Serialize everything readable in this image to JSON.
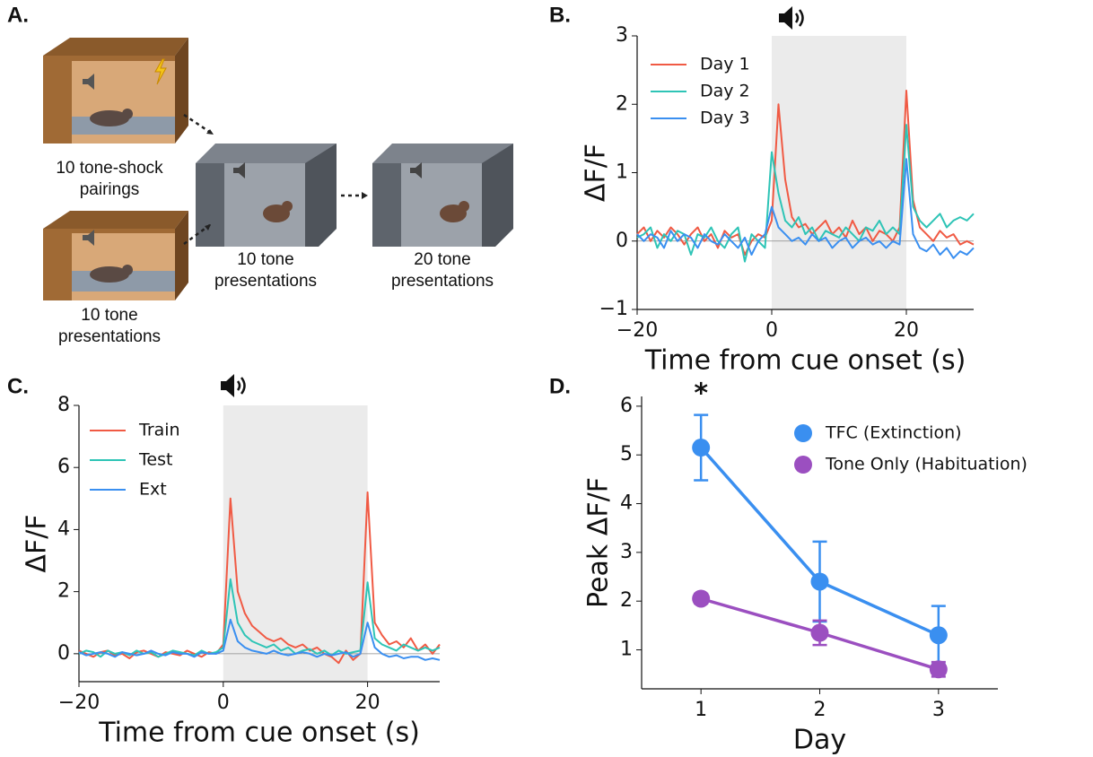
{
  "diagram": {
    "label": "A.",
    "captions": [
      [
        "10 tone-shock",
        "pairings"
      ],
      [
        "10 tone",
        "presentations"
      ],
      [
        "10 tone",
        "presentations"
      ],
      [
        "20 tone",
        "presentations"
      ]
    ]
  },
  "chart_data": [
    {
      "type": "line",
      "label": "B.",
      "xlabel": "Time from cue onset (s)",
      "ylabel": "ΔF/F",
      "xlim": [
        -20,
        30
      ],
      "ylim": [
        -1,
        3
      ],
      "xticks": [
        {
          "value": -20,
          "label": "−20"
        },
        0,
        20
      ],
      "yticks": [
        {
          "value": -1,
          "label": "−1"
        },
        0,
        1,
        2,
        3
      ],
      "highlight": [
        0,
        20
      ],
      "legend": "upper left",
      "x": [
        -20,
        -19,
        -18,
        -17,
        -16,
        -15,
        -14,
        -13,
        -12,
        -11,
        -10,
        -9,
        -8,
        -7,
        -6,
        -5,
        -4,
        -3,
        -2,
        -1,
        0,
        1,
        2,
        3,
        4,
        5,
        6,
        7,
        8,
        9,
        10,
        11,
        12,
        13,
        14,
        15,
        16,
        17,
        18,
        19,
        20,
        21,
        22,
        23,
        24,
        25,
        26,
        27,
        28,
        29,
        30
      ],
      "series": [
        {
          "name": "Day 1",
          "color": "#f05a44",
          "values": [
            0.1,
            0.2,
            0.0,
            0.15,
            0.05,
            0.2,
            0.1,
            -0.05,
            0.1,
            0.2,
            0.0,
            0.1,
            -0.1,
            0.15,
            0.05,
            0.1,
            -0.2,
            0.0,
            0.1,
            0.05,
            0.3,
            2.0,
            0.9,
            0.35,
            0.2,
            0.25,
            0.1,
            0.2,
            0.3,
            0.1,
            0.2,
            0.05,
            0.3,
            0.1,
            0.2,
            0.0,
            0.15,
            0.1,
            0.0,
            0.2,
            2.2,
            0.6,
            0.2,
            0.1,
            0.0,
            0.15,
            0.05,
            0.1,
            -0.05,
            0.0,
            -0.05
          ]
        },
        {
          "name": "Day 2",
          "color": "#2ec4b6",
          "values": [
            0.05,
            0.1,
            0.2,
            -0.1,
            0.1,
            0.0,
            0.15,
            0.1,
            -0.2,
            0.1,
            0.05,
            0.2,
            0.0,
            -0.1,
            0.1,
            0.2,
            -0.3,
            0.1,
            0.0,
            -0.1,
            1.3,
            0.7,
            0.3,
            0.2,
            0.35,
            0.1,
            0.2,
            0.0,
            0.15,
            0.1,
            0.05,
            0.2,
            0.1,
            0.0,
            0.2,
            0.15,
            0.3,
            0.1,
            0.2,
            0.1,
            1.7,
            0.5,
            0.3,
            0.2,
            0.3,
            0.4,
            0.2,
            0.3,
            0.35,
            0.3,
            0.4
          ]
        },
        {
          "name": "Day 3",
          "color": "#3a8ff0",
          "values": [
            0.1,
            0.0,
            0.1,
            0.05,
            -0.1,
            0.15,
            0.0,
            0.1,
            0.05,
            -0.1,
            0.1,
            0.0,
            -0.05,
            0.1,
            0.0,
            -0.1,
            0.05,
            -0.2,
            0.0,
            0.1,
            0.5,
            0.2,
            0.1,
            0.0,
            0.05,
            -0.05,
            0.1,
            0.0,
            0.05,
            -0.1,
            0.0,
            0.05,
            -0.1,
            0.0,
            0.05,
            -0.05,
            0.0,
            -0.1,
            0.0,
            -0.05,
            1.2,
            0.1,
            -0.1,
            -0.15,
            -0.05,
            -0.2,
            -0.1,
            -0.25,
            -0.15,
            -0.2,
            -0.1
          ]
        }
      ]
    },
    {
      "type": "line",
      "label": "C.",
      "xlabel": "Time from cue onset (s)",
      "ylabel": "ΔF/F",
      "xlim": [
        -20,
        30
      ],
      "ylim": [
        -0.9,
        8
      ],
      "xticks": [
        {
          "value": -20,
          "label": "−20"
        },
        0,
        20
      ],
      "yticks": [
        0,
        2,
        4,
        6,
        8
      ],
      "highlight": [
        0,
        20
      ],
      "legend": "upper left",
      "x": [
        -20,
        -19,
        -18,
        -17,
        -16,
        -15,
        -14,
        -13,
        -12,
        -11,
        -10,
        -9,
        -8,
        -7,
        -6,
        -5,
        -4,
        -3,
        -2,
        -1,
        0,
        1,
        2,
        3,
        4,
        5,
        6,
        7,
        8,
        9,
        10,
        11,
        12,
        13,
        14,
        15,
        16,
        17,
        18,
        19,
        20,
        21,
        22,
        23,
        24,
        25,
        26,
        27,
        28,
        29,
        30
      ],
      "series": [
        {
          "name": "Train",
          "color": "#f05a44",
          "values": [
            0.1,
            0.0,
            -0.1,
            0.05,
            0.1,
            -0.05,
            0.0,
            -0.15,
            0.05,
            0.1,
            0.0,
            -0.1,
            0.05,
            0.0,
            -0.05,
            0.1,
            0.0,
            -0.1,
            0.05,
            0.0,
            0.3,
            5.0,
            2.0,
            1.3,
            0.9,
            0.7,
            0.5,
            0.4,
            0.5,
            0.3,
            0.2,
            0.3,
            0.1,
            0.2,
            0.0,
            -0.1,
            -0.3,
            0.1,
            -0.2,
            0.0,
            5.2,
            1.0,
            0.6,
            0.3,
            0.4,
            0.2,
            0.5,
            0.1,
            0.3,
            0.0,
            0.3
          ]
        },
        {
          "name": "Test",
          "color": "#2ec4b6",
          "values": [
            0.0,
            0.1,
            0.05,
            -0.1,
            0.1,
            0.0,
            0.05,
            -0.05,
            0.1,
            0.0,
            0.05,
            -0.1,
            0.0,
            0.1,
            0.05,
            0.0,
            -0.05,
            0.1,
            0.0,
            0.05,
            0.2,
            2.4,
            1.0,
            0.6,
            0.4,
            0.3,
            0.2,
            0.3,
            0.1,
            0.2,
            0.0,
            0.1,
            0.15,
            0.0,
            0.1,
            -0.05,
            0.1,
            0.0,
            0.05,
            0.1,
            2.3,
            0.5,
            0.3,
            0.2,
            0.1,
            0.3,
            0.2,
            0.1,
            0.2,
            0.1,
            0.2
          ]
        },
        {
          "name": "Ext",
          "color": "#3a8ff0",
          "values": [
            0.05,
            -0.05,
            0.0,
            0.05,
            0.0,
            -0.1,
            0.05,
            0.0,
            -0.05,
            0.0,
            0.1,
            0.0,
            -0.05,
            0.05,
            0.0,
            0.0,
            -0.1,
            0.05,
            0.0,
            0.0,
            0.1,
            1.1,
            0.4,
            0.2,
            0.1,
            0.05,
            0.0,
            0.1,
            0.0,
            -0.05,
            0.0,
            0.05,
            0.0,
            -0.1,
            0.0,
            -0.05,
            0.0,
            0.05,
            -0.1,
            0.0,
            1.0,
            0.2,
            0.0,
            -0.1,
            -0.05,
            -0.15,
            -0.1,
            -0.1,
            -0.2,
            -0.15,
            -0.2
          ]
        }
      ]
    },
    {
      "type": "line",
      "label": "D.",
      "xlabel": "Day",
      "ylabel": "Peak ΔF/F",
      "xlim": [
        0.5,
        3.5
      ],
      "ylim": [
        0.2,
        6.2
      ],
      "xticks": [
        1,
        2,
        3
      ],
      "yticks": [
        1,
        2,
        3,
        4,
        5,
        6
      ],
      "markers": true,
      "legend": "upper right",
      "annotations": [
        {
          "text": "*",
          "x": 1
        }
      ],
      "x": [
        1,
        2,
        3
      ],
      "series": [
        {
          "name": "TFC (Extinction)",
          "color": "#3a8ff0",
          "values": [
            5.15,
            2.4,
            1.3
          ],
          "errors": [
            0.67,
            0.82,
            0.6
          ]
        },
        {
          "name": "Tone Only (Habituation)",
          "color": "#9b4fc0",
          "values": [
            2.05,
            1.35,
            0.6
          ],
          "errors": [
            0.1,
            0.25,
            0.15
          ]
        }
      ]
    }
  ]
}
